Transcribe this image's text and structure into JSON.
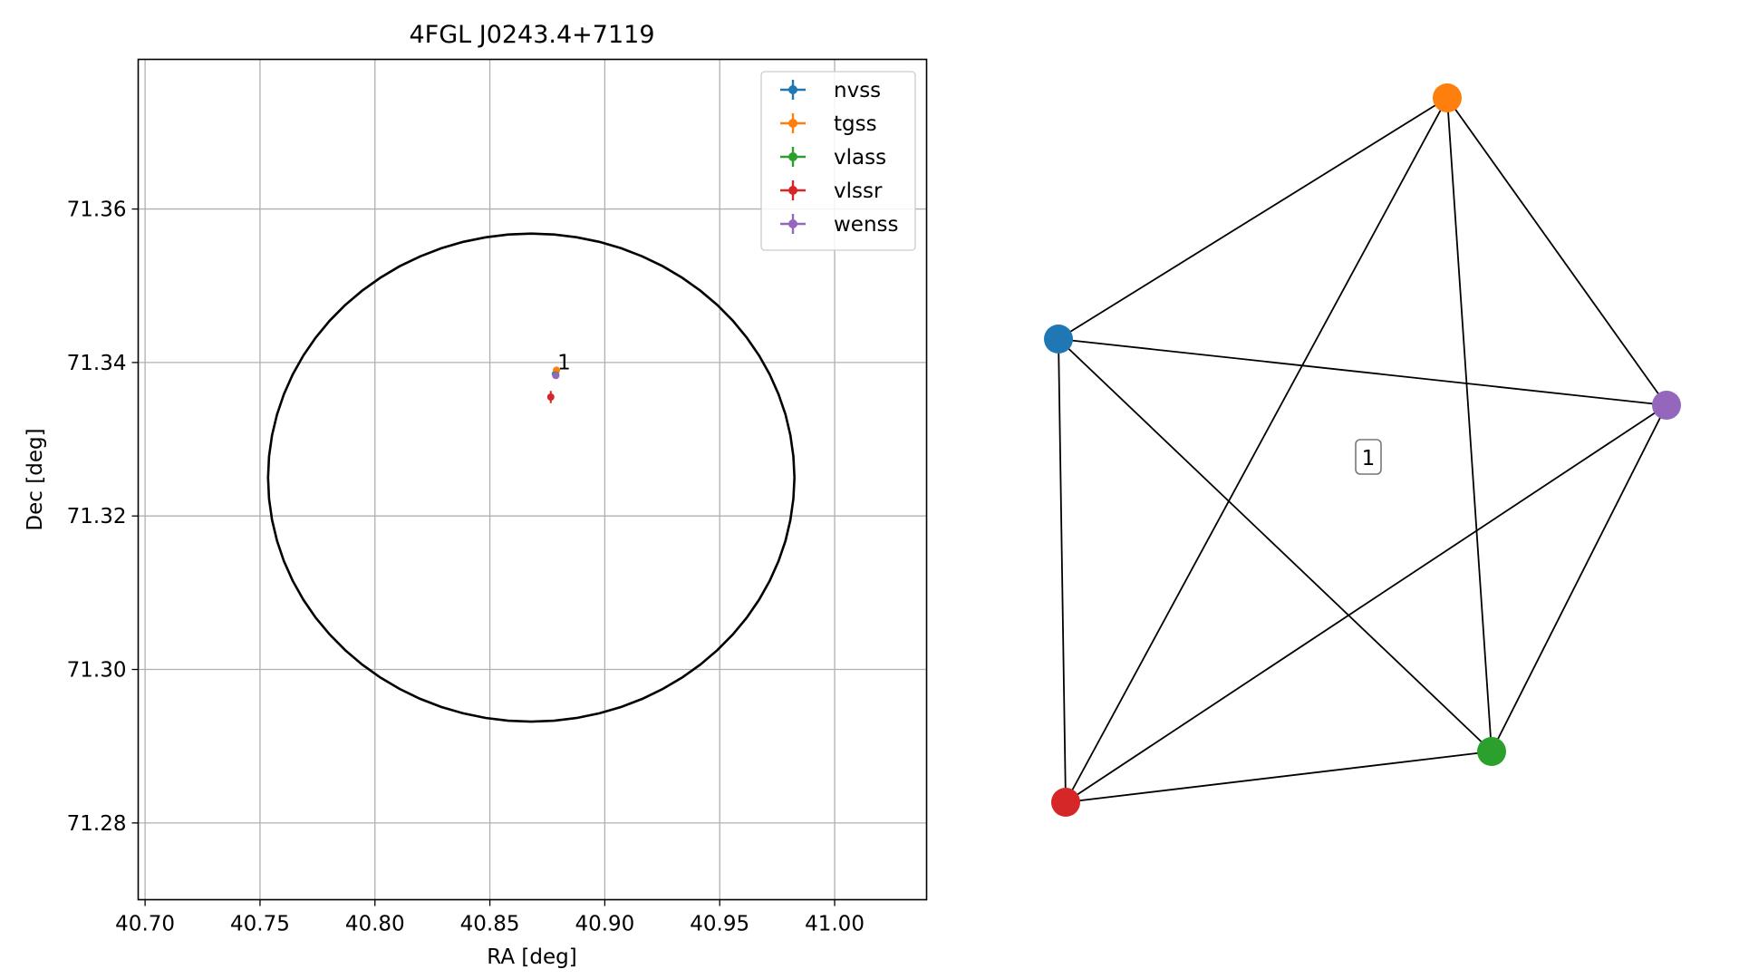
{
  "chart_data": [
    {
      "type": "scatter",
      "title": "4FGL J0243.4+7119",
      "xlabel": "RA [deg]",
      "ylabel": "Dec [deg]",
      "xlim": [
        40.697,
        41.04
      ],
      "ylim": [
        71.27,
        71.3795
      ],
      "xticks": [
        40.7,
        40.75,
        40.8,
        40.85,
        40.9,
        40.95,
        41.0
      ],
      "xtick_labels": [
        "40.70",
        "40.75",
        "40.80",
        "40.85",
        "40.90",
        "40.95",
        "41.00"
      ],
      "yticks": [
        71.28,
        71.3,
        71.32,
        71.34,
        71.36
      ],
      "ytick_labels": [
        "71.28",
        "71.30",
        "71.32",
        "71.34",
        "71.36"
      ],
      "grid": true,
      "legend_position": "upper right",
      "series": [
        {
          "name": "nvss",
          "color": "#1f77b4",
          "x": [
            40.8785
          ],
          "y": [
            71.3385
          ],
          "xerr": [
            0.0008
          ],
          "yerr": [
            0.0004
          ]
        },
        {
          "name": "tgss",
          "color": "#ff7f0e",
          "x": [
            40.879
          ],
          "y": [
            71.339
          ],
          "xerr": [
            0.0008
          ],
          "yerr": [
            0.0004
          ]
        },
        {
          "name": "vlass",
          "color": "#2ca02c",
          "x": [
            40.8787
          ],
          "y": [
            71.3384
          ],
          "xerr": [
            0.0003
          ],
          "yerr": [
            0.0002
          ]
        },
        {
          "name": "vlssr",
          "color": "#d62728",
          "x": [
            40.8765
          ],
          "y": [
            71.3355
          ],
          "xerr": [
            0.001
          ],
          "yerr": [
            0.0008
          ]
        },
        {
          "name": "wenss",
          "color": "#9467bd",
          "x": [
            40.8787
          ],
          "y": [
            71.3383
          ],
          "xerr": [
            0.0008
          ],
          "yerr": [
            0.0004
          ]
        }
      ],
      "ellipse": {
        "center_x": 40.868,
        "center_y": 71.325,
        "radius_x": 0.1145,
        "radius_y": 0.0318,
        "color": "#000000"
      },
      "annotation": {
        "text": "1",
        "x": 40.879,
        "y": 71.339
      }
    },
    {
      "type": "network",
      "label": "1",
      "nodes": [
        {
          "id": "nvss",
          "color": "#1f77b4"
        },
        {
          "id": "tgss",
          "color": "#ff7f0e"
        },
        {
          "id": "vlass",
          "color": "#2ca02c"
        },
        {
          "id": "vlssr",
          "color": "#d62728"
        },
        {
          "id": "wenss",
          "color": "#9467bd"
        }
      ],
      "edges": [
        [
          "nvss",
          "tgss"
        ],
        [
          "nvss",
          "wenss"
        ],
        [
          "nvss",
          "vlass"
        ],
        [
          "nvss",
          "vlssr"
        ],
        [
          "tgss",
          "vlssr"
        ],
        [
          "tgss",
          "vlass"
        ],
        [
          "tgss",
          "wenss"
        ],
        [
          "wenss",
          "vlssr"
        ],
        [
          "wenss",
          "vlass"
        ],
        [
          "vlass",
          "vlssr"
        ]
      ]
    }
  ]
}
